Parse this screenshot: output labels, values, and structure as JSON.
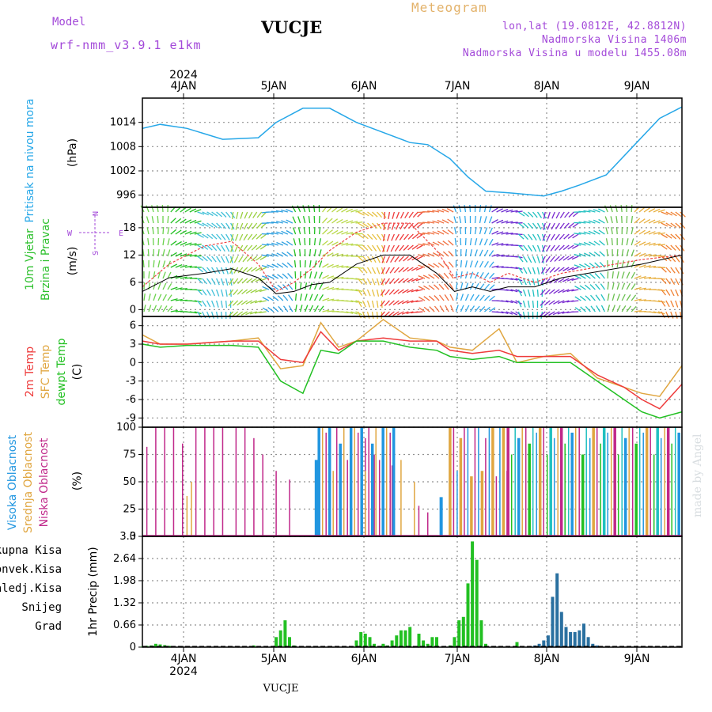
{
  "header": {
    "model_label": "Model",
    "model_name": "wrf-nmm_v3.9.1 e1km",
    "location": "VUCJE",
    "meteogram": "Meteogram",
    "lonlat": "lon,lat (19.0812E, 42.8812N)",
    "elevation": "Nadmorska Visina 1406m",
    "model_elevation": "Nadmorska Visina u modelu 1455.08m",
    "bottom_location": "VUCJE",
    "watermark": "made by Angel"
  },
  "colors": {
    "header_purple": "#a349d9",
    "meteogram_orange": "#e3b26a",
    "pressure": "#26a7e8",
    "wind_label": "#2ec02e",
    "temp2m": "#ee3b3b",
    "sfc": "#e0a640",
    "dewpt": "#22c022",
    "cloud_high": "#2196e0",
    "cloud_mid": "#e0a640",
    "cloud_low": "#c0288a",
    "precip_total": "#22c022",
    "precip_conv": "#ee3b3b",
    "precip_frz": "#f08030",
    "precip_snow": "#3040c0",
    "precip_graupel": "#20c0c0"
  },
  "chart_data": [
    {
      "type": "line",
      "name": "pressure",
      "ylabel": "Pritisak na nivou mora",
      "unit": "(hPa)",
      "yticks": [
        "996",
        "1002",
        "1008",
        "1014"
      ],
      "ylim": [
        993,
        1020
      ],
      "x_days": [
        "4JAN",
        "5JAN",
        "6JAN",
        "7JAN",
        "8JAN",
        "9JAN"
      ],
      "year": "2024",
      "series": [
        {
          "x": [
            0,
            0.2,
            0.5,
            0.9,
            1.3,
            1.5,
            1.8,
            2.1,
            2.4,
            2.7,
            3.0,
            3.2,
            3.45,
            3.65,
            3.85,
            4.15,
            4.5,
            4.7,
            4.9,
            5.2,
            5.5,
            5.8,
            6.05
          ],
          "values": [
            1012.5,
            1013.5,
            1012.5,
            1009.8,
            1010.2,
            1014,
            1017.5,
            1017.5,
            1014,
            1011.5,
            1009,
            1008.5,
            1005,
            1000.5,
            997,
            996.5,
            995.8,
            997,
            998.5,
            1001,
            1008,
            1015,
            1017.8
          ]
        }
      ]
    },
    {
      "type": "line",
      "name": "wind",
      "ylabel": "10m Vjetar Brzina i Pravac",
      "unit": "(m/s)",
      "yticks": [
        "0",
        "6",
        "12",
        "18"
      ],
      "ylim": [
        -1.5,
        22.5
      ],
      "compass": [
        "W",
        "E",
        "N",
        "S"
      ],
      "series": [
        {
          "name": "speed",
          "x": [
            0,
            0.3,
            0.7,
            1.0,
            1.3,
            1.5,
            1.7,
            1.9,
            2.1,
            2.4,
            2.7,
            3.0,
            3.3,
            3.5,
            3.7,
            3.9,
            4.1,
            4.4,
            4.7,
            5.0,
            5.3,
            5.6,
            6.05
          ],
          "values": [
            4,
            7,
            8,
            9,
            7,
            3.5,
            4,
            5.5,
            6,
            10,
            12,
            12,
            8,
            4,
            5,
            4,
            5,
            5,
            7,
            8,
            9,
            10,
            12
          ]
        },
        {
          "name": "gust",
          "x": [
            0,
            0.3,
            0.7,
            1.0,
            1.3,
            1.5,
            1.7,
            1.9,
            2.1,
            2.4,
            2.7,
            3.0,
            3.3,
            3.5,
            3.7,
            3.9,
            4.1,
            4.4,
            4.7,
            5.0,
            5.3,
            5.6,
            6.05
          ],
          "values": [
            5,
            10,
            14,
            15,
            10,
            4,
            6,
            9,
            13,
            17,
            19,
            19,
            13,
            7,
            8,
            6,
            8,
            6,
            8,
            9,
            10,
            11,
            12
          ]
        }
      ]
    },
    {
      "type": "line",
      "name": "temperature",
      "ylabels": [
        "2m Temp",
        "SFC Temp",
        "dewpt Temp"
      ],
      "unit": "(C)",
      "yticks": [
        "-9",
        "-6",
        "-3",
        "0",
        "3",
        "6"
      ],
      "ylim": [
        -10.5,
        7.5
      ],
      "series": [
        {
          "name": "2m Temp",
          "x": [
            0,
            0.2,
            0.5,
            1.0,
            1.3,
            1.55,
            1.8,
            2.0,
            2.2,
            2.4,
            2.7,
            3.0,
            3.3,
            3.45,
            3.7,
            4.0,
            4.2,
            4.5,
            4.8,
            5.1,
            5.4,
            5.6,
            5.8,
            6.05
          ],
          "values": [
            3.5,
            3,
            3,
            3.5,
            3.5,
            0.5,
            0,
            5,
            2,
            3.5,
            4,
            3.5,
            3.5,
            2,
            1.5,
            2,
            1,
            1,
            1,
            -2,
            -4,
            -6,
            -7.5,
            -3.5
          ]
        },
        {
          "name": "SFC Temp",
          "x": [
            0,
            0.2,
            0.5,
            1.0,
            1.3,
            1.55,
            1.8,
            2.0,
            2.2,
            2.4,
            2.7,
            3.0,
            3.3,
            3.45,
            3.7,
            4.0,
            4.2,
            4.5,
            4.8,
            5.1,
            5.4,
            5.6,
            5.8,
            6.05
          ],
          "values": [
            4.5,
            3,
            3,
            3.5,
            4,
            -1,
            -0.5,
            6.5,
            2.5,
            3.5,
            7,
            4,
            3.5,
            2.5,
            2,
            5.5,
            0,
            1,
            1.5,
            -2.5,
            -4,
            -5,
            -5.5,
            -0.5
          ]
        },
        {
          "name": "dewpt Temp",
          "x": [
            0,
            0.2,
            0.5,
            1.0,
            1.3,
            1.55,
            1.8,
            2.0,
            2.2,
            2.4,
            2.7,
            3.0,
            3.3,
            3.45,
            3.7,
            4.0,
            4.2,
            4.5,
            4.8,
            5.1,
            5.4,
            5.6,
            5.8,
            6.05
          ],
          "values": [
            3,
            2.5,
            2.8,
            2.8,
            2.5,
            -3,
            -5,
            2,
            1.5,
            3.5,
            3.5,
            2.5,
            2,
            1,
            0.5,
            1,
            0,
            0,
            0,
            -3,
            -6,
            -8,
            -9,
            -8
          ]
        }
      ]
    },
    {
      "type": "bar",
      "name": "clouds",
      "ylabels": [
        "Visoka Oblacnost",
        "Srednja Oblacnost",
        "Niska Oblacnost"
      ],
      "unit": "(%)",
      "yticks": [
        "0",
        "25",
        "50",
        "75",
        "100"
      ],
      "ylim": [
        0,
        100
      ],
      "series": [
        {
          "name": "Niska Oblacnost",
          "x": [
            0.05,
            0.15,
            0.25,
            0.35,
            0.45,
            0.6,
            0.7,
            0.8,
            0.9,
            1.05,
            1.15,
            1.25,
            1.35,
            1.5,
            1.65,
            2.5,
            2.6,
            2.7,
            2.8,
            3.1,
            3.2
          ],
          "values": [
            82,
            100,
            100,
            100,
            85,
            100,
            100,
            100,
            100,
            100,
            100,
            90,
            75,
            60,
            52,
            90,
            75,
            80,
            65,
            28,
            22
          ]
        },
        {
          "name": "Srednja Oblacnost",
          "x": [
            0.5,
            0.55,
            2.9,
            3.05
          ],
          "values": [
            37,
            50,
            70,
            50
          ]
        },
        {
          "name": "Visoka Oblacnost",
          "x": [
            1.95,
            3.35
          ],
          "values": [
            70,
            36
          ]
        }
      ],
      "dense_ranges": [
        {
          "x0": 1.98,
          "x1": 2.85,
          "values": [
            100,
            100,
            95,
            100,
            60,
            100,
            85,
            100,
            70
          ]
        },
        {
          "x0": 3.45,
          "x1": 4.1,
          "values": [
            100,
            100,
            60,
            90,
            100,
            100,
            55
          ]
        },
        {
          "x0": 4.1,
          "x1": 6.05,
          "values": [
            100,
            75,
            100,
            90,
            100,
            100,
            85,
            100,
            95,
            100
          ]
        }
      ]
    },
    {
      "type": "bar",
      "name": "precip",
      "ylabel": "1hr Precip",
      "unit": "(mm)",
      "legend": [
        "Ukupna Kisa",
        "Konvek.Kisa",
        "Zaledj.Kisa",
        "Snijeg",
        "Grad"
      ],
      "yticks": [
        "0",
        "0.66",
        "1.32",
        "1.98",
        "2.64",
        "3.3"
      ],
      "ylim": [
        0,
        3.3
      ],
      "series": [
        {
          "name": "Ukupna Kisa",
          "x": [
            0.0,
            0.05,
            0.1,
            0.15,
            0.2,
            0.25,
            0.3,
            0.9,
            1.25,
            1.5,
            1.55,
            1.6,
            1.65,
            1.7,
            2.4,
            2.45,
            2.5,
            2.55,
            2.6,
            2.7,
            2.75,
            2.8,
            2.85,
            2.9,
            2.95,
            3.0,
            3.1,
            3.15,
            3.2,
            3.25,
            3.3,
            3.45,
            3.5,
            3.55,
            3.6,
            3.65,
            3.7,
            3.75,
            3.8,
            3.85,
            4.2
          ],
          "values": [
            0.02,
            0.04,
            0.05,
            0.1,
            0.08,
            0.06,
            0.04,
            0.02,
            0.05,
            0.3,
            0.5,
            0.8,
            0.3,
            0.05,
            0.2,
            0.45,
            0.4,
            0.3,
            0.1,
            0.1,
            0.05,
            0.2,
            0.35,
            0.5,
            0.5,
            0.6,
            0.4,
            0.2,
            0.1,
            0.3,
            0.3,
            0.05,
            0.3,
            0.8,
            0.9,
            1.9,
            3.15,
            2.6,
            0.8,
            0.1,
            0.15
          ]
        },
        {
          "name": "Snijeg",
          "x": [
            4.4,
            4.45,
            4.5,
            4.55,
            4.6,
            4.65,
            4.7,
            4.75,
            4.8,
            4.85,
            4.9,
            4.95,
            5.0,
            5.05,
            5.1
          ],
          "values": [
            0.05,
            0.1,
            0.2,
            0.35,
            1.5,
            2.2,
            1.05,
            0.6,
            0.45,
            0.45,
            0.5,
            0.7,
            0.3,
            0.1,
            0.05
          ]
        }
      ]
    }
  ]
}
